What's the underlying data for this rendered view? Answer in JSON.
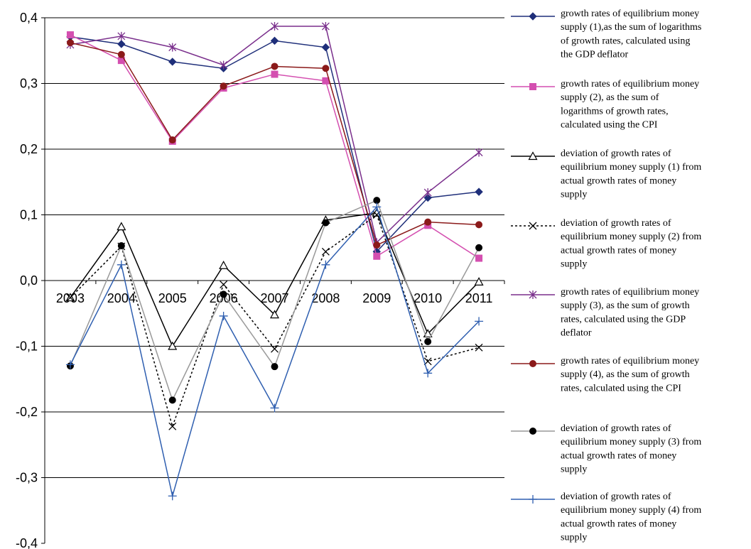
{
  "chart_data": {
    "type": "line",
    "title": "",
    "xlabel": "",
    "ylabel": "",
    "categories": [
      "2003",
      "2004",
      "2005",
      "2006",
      "2007",
      "2008",
      "2009",
      "2010",
      "2011"
    ],
    "ylim": [
      -0.4,
      0.4
    ],
    "yticks": [
      0.4,
      0.3,
      0.2,
      0.1,
      0.0,
      -0.1,
      -0.2,
      -0.3,
      -0.4
    ],
    "ytick_labels": [
      "0,4",
      "0,3",
      "0,2",
      "0,1",
      "0,0",
      "-0,1",
      "-0,2",
      "-0,3",
      "-0,4"
    ],
    "grid": true,
    "legend_position": "right",
    "series": [
      {
        "name": "growth rates of equilibrium money supply (1),as the sum of logarithms of growth rates, calculated using the GDP deflator",
        "legend_lines": [
          "growth rates of equilibrium money",
          "supply (1),as the sum of logarithms",
          "of growth rates, calculated using",
          "the GDP deflator"
        ],
        "color": "#1f2f7a",
        "marker": "diamond",
        "dash": "solid",
        "values": [
          0.371,
          0.36,
          0.333,
          0.323,
          0.365,
          0.355,
          0.044,
          0.126,
          0.135
        ]
      },
      {
        "name": "growth rates of equilibrium money supply (2), as the sum of logarithms of growth rates, calculated using the CPI",
        "legend_lines": [
          "growth rates of equilibrium money",
          "supply (2), as the sum of",
          "logarithms of growth rates,",
          "calculated using the CPI"
        ],
        "color": "#d44fb0",
        "marker": "square",
        "dash": "solid",
        "values": [
          0.374,
          0.335,
          0.212,
          0.293,
          0.314,
          0.304,
          0.037,
          0.084,
          0.034
        ]
      },
      {
        "name": "deviation of growth rates of equilibrium money supply (1) from actual growth rates of money supply",
        "legend_lines": [
          "deviation of growth rates of",
          "equilibrium money supply (1) from",
          "actual growth rates of money",
          "supply"
        ],
        "color": "#000000",
        "marker": "triangle",
        "dash": "solid",
        "values": [
          -0.026,
          0.082,
          -0.1,
          0.023,
          -0.052,
          0.092,
          0.103,
          -0.081,
          -0.002
        ]
      },
      {
        "name": "deviation of growth rates of equilibrium money supply (2) from actual growth rates of money supply",
        "legend_lines": [
          "deviation of growth rates of",
          "equilibrium money supply (2) from",
          "actual growth rates of money",
          "supply"
        ],
        "color": "#000000",
        "marker": "x",
        "dash": "dotted",
        "values": [
          -0.026,
          0.052,
          -0.222,
          -0.006,
          -0.104,
          0.044,
          0.1,
          -0.123,
          -0.102
        ]
      },
      {
        "name": "growth rates of equilibrium money supply (3), as the sum of growth rates, calculated using the GDP deflator",
        "legend_lines": [
          "growth rates of equilibrium money",
          "supply (3), as the sum of growth",
          "rates, calculated using the GDP",
          "deflator"
        ],
        "color": "#7a2f8c",
        "marker": "asterisk",
        "dash": "solid",
        "values": [
          0.359,
          0.372,
          0.355,
          0.328,
          0.387,
          0.387,
          0.058,
          0.134,
          0.195
        ]
      },
      {
        "name": "growth rates of equilibrium money supply (4), as the sum of growth rates, calculated using the CPI",
        "legend_lines": [
          "growth rates of equilibrium money",
          "supply (4), as the sum of growth",
          "rates, calculated using the CPI"
        ],
        "color": "#8b1a1a",
        "marker": "circle",
        "dash": "solid",
        "values": [
          0.362,
          0.344,
          0.214,
          0.296,
          0.326,
          0.323,
          0.054,
          0.089,
          0.085
        ]
      },
      {
        "name": "deviation of growth rates of equilibrium money supply (3) from actual growth rates of money supply",
        "legend_lines": [
          "deviation of growth rates of",
          "equilibrium money supply (3) from",
          "actual growth rates of money",
          "supply"
        ],
        "color": "#999999",
        "marker_color": "#000000",
        "marker": "circle",
        "dash": "solid",
        "values": [
          -0.13,
          0.053,
          -0.182,
          -0.021,
          -0.131,
          0.088,
          0.122,
          -0.093,
          0.05
        ]
      },
      {
        "name": "deviation of growth rates of equilibrium money supply (4) from actual growth rates of money supply",
        "legend_lines": [
          "deviation of growth rates of",
          "equilibrium money supply (4) from",
          "actual growth rates of money",
          "supply"
        ],
        "color": "#2f5fb0",
        "marker": "plus",
        "dash": "solid",
        "values": [
          -0.128,
          0.024,
          -0.328,
          -0.054,
          -0.194,
          0.024,
          0.112,
          -0.141,
          -0.062
        ]
      }
    ]
  }
}
